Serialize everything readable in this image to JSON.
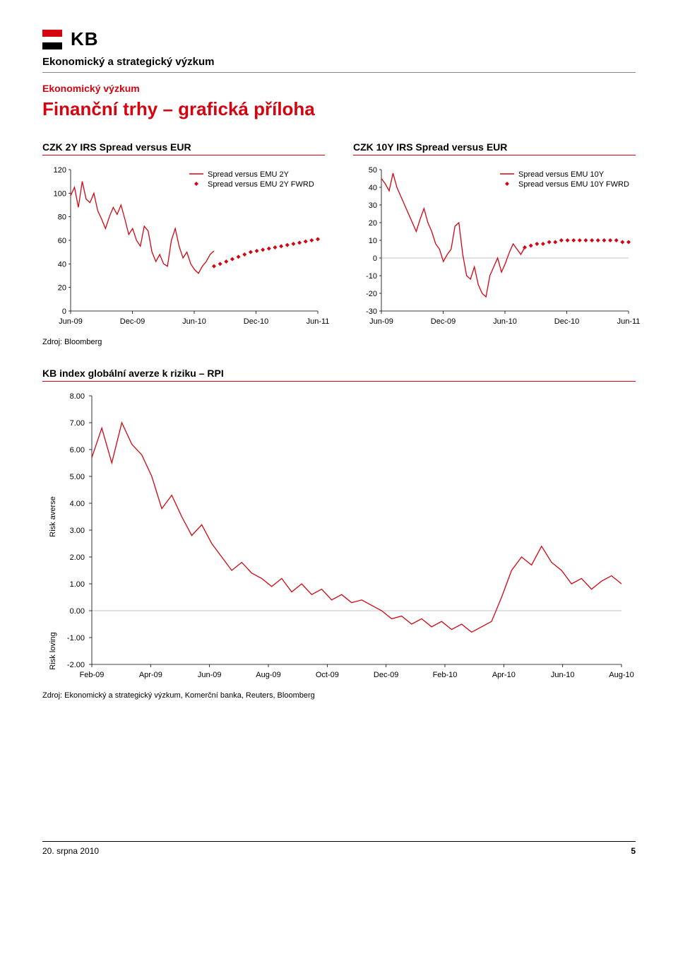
{
  "header": {
    "logo_text": "KB",
    "subtitle": "Ekonomický a strategický výzkum",
    "section_label": "Ekonomický výzkum",
    "page_title": "Finanční trhy – grafická příloha"
  },
  "chart1": {
    "title": "CZK 2Y IRS Spread versus EUR",
    "type": "line",
    "ylim": [
      0,
      120
    ],
    "ytick_step": 20,
    "x_labels": [
      "Jun-09",
      "Dec-09",
      "Jun-10",
      "Dec-10",
      "Jun-11"
    ],
    "legend": [
      "Spread versus EMU 2Y",
      "Spread versus EMU 2Y FWRD"
    ],
    "line_color": "#d40511",
    "marker_color": "#d40511",
    "series_values": [
      98,
      105,
      88,
      110,
      95,
      92,
      100,
      85,
      78,
      70,
      80,
      88,
      82,
      90,
      78,
      65,
      70,
      60,
      55,
      72,
      68,
      50,
      42,
      48,
      40,
      38,
      60,
      70,
      55,
      45,
      50,
      40,
      35,
      32,
      38,
      42,
      48,
      51
    ],
    "fwrd_values": [
      38,
      40,
      42,
      44,
      46,
      48,
      50,
      51,
      52,
      53,
      54,
      55,
      56,
      57,
      58,
      59,
      60,
      61
    ]
  },
  "chart2": {
    "title": "CZK 10Y IRS Spread versus EUR",
    "type": "line",
    "ylim": [
      -30,
      50
    ],
    "ytick_step": 10,
    "x_labels": [
      "Jun-09",
      "Dec-09",
      "Jun-10",
      "Dec-10",
      "Jun-11"
    ],
    "legend": [
      "Spread versus EMU 10Y",
      "Spread versus EMU 10Y FWRD"
    ],
    "line_color": "#d40511",
    "marker_color": "#d40511",
    "series_values": [
      45,
      42,
      38,
      48,
      40,
      35,
      30,
      25,
      20,
      15,
      22,
      28,
      20,
      15,
      8,
      5,
      -2,
      2,
      5,
      18,
      20,
      2,
      -10,
      -12,
      -5,
      -15,
      -20,
      -22,
      -10,
      -5,
      0,
      -8,
      -3,
      3,
      8,
      5,
      2,
      6
    ],
    "fwrd_values": [
      6,
      7,
      8,
      8,
      9,
      9,
      10,
      10,
      10,
      10,
      10,
      10,
      10,
      10,
      10,
      10,
      9,
      9
    ]
  },
  "source1": "Zdroj: Bloomberg",
  "chart3": {
    "title": "KB index globální averze k riziku – RPI",
    "type": "line",
    "ylim": [
      -2,
      8
    ],
    "ytick_step": 1,
    "y_labels": [
      "8.00",
      "7.00",
      "6.00",
      "5.00",
      "4.00",
      "3.00",
      "2.00",
      "1.00",
      "0.00",
      "-1.00",
      "-2.00"
    ],
    "x_labels": [
      "Feb-09",
      "Apr-09",
      "Jun-09",
      "Aug-09",
      "Oct-09",
      "Dec-09",
      "Feb-10",
      "Apr-10",
      "Jun-10",
      "Aug-10"
    ],
    "axis_label_top": "Risk averse",
    "axis_label_bottom": "Risk loving",
    "line_color": "#d40511",
    "series_values": [
      5.7,
      6.8,
      5.5,
      7.0,
      6.2,
      5.8,
      5.0,
      3.8,
      4.3,
      3.5,
      2.8,
      3.2,
      2.5,
      2.0,
      1.5,
      1.8,
      1.4,
      1.2,
      0.9,
      1.2,
      0.7,
      1.0,
      0.6,
      0.8,
      0.4,
      0.6,
      0.3,
      0.4,
      0.2,
      0.0,
      -0.3,
      -0.2,
      -0.5,
      -0.3,
      -0.6,
      -0.4,
      -0.7,
      -0.5,
      -0.8,
      -0.6,
      -0.4,
      0.5,
      1.5,
      2.0,
      1.7,
      2.4,
      1.8,
      1.5,
      1.0,
      1.2,
      0.8,
      1.1,
      1.3,
      1.0
    ]
  },
  "source2": "Zdroj: Ekonomický a strategický výzkum, Komerční banka, Reuters, Bloomberg",
  "footer": {
    "date": "20. srpna 2010",
    "page": "5"
  }
}
